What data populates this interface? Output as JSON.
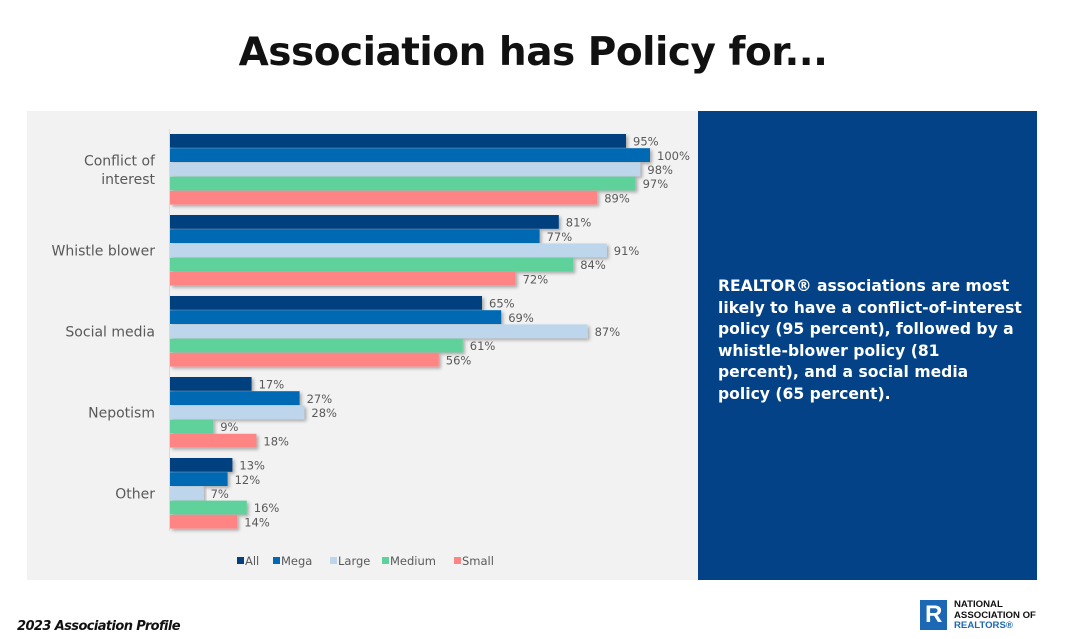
{
  "page": {
    "title": "Association has Policy for...",
    "footer": "2023 Association Profile",
    "logo": {
      "line1": "NATIONAL",
      "line2": "ASSOCIATION OF",
      "line3": "REALTORS®",
      "mark": "R"
    },
    "callout": "REALTOR® associations are most likely to have a conflict-of-interest policy (95 percent), followed by a whistle-blower policy (81 percent), and a social media policy (65 percent).",
    "colors": {
      "callout_bg": "#034286",
      "panel_bg": "#f2f2f2"
    }
  },
  "chart_data": {
    "type": "bar",
    "orientation": "horizontal",
    "title": "Association has Policy for...",
    "xlabel": "",
    "ylabel": "",
    "xlim": [
      0,
      100
    ],
    "unit": "%",
    "grid": false,
    "legend_position": "bottom",
    "categories": [
      "Conflict of interest",
      "Whistle blower",
      "Social media",
      "Nepotism",
      "Other"
    ],
    "category_lines": [
      [
        "Conflict of",
        "interest"
      ],
      [
        "Whistle blower"
      ],
      [
        "Social media"
      ],
      [
        "Nepotism"
      ],
      [
        "Other"
      ]
    ],
    "series": [
      {
        "name": "All",
        "color": "#01407f",
        "values": [
          95,
          81,
          65,
          17,
          13
        ]
      },
      {
        "name": "Mega",
        "color": "#0069b4",
        "values": [
          100,
          77,
          69,
          27,
          12
        ]
      },
      {
        "name": "Large",
        "color": "#bdd6ec",
        "values": [
          98,
          91,
          87,
          28,
          7
        ]
      },
      {
        "name": "Medium",
        "color": "#5fd29c",
        "values": [
          97,
          84,
          61,
          9,
          16
        ]
      },
      {
        "name": "Small",
        "color": "#ff8585",
        "values": [
          89,
          72,
          56,
          18,
          14
        ]
      }
    ]
  }
}
